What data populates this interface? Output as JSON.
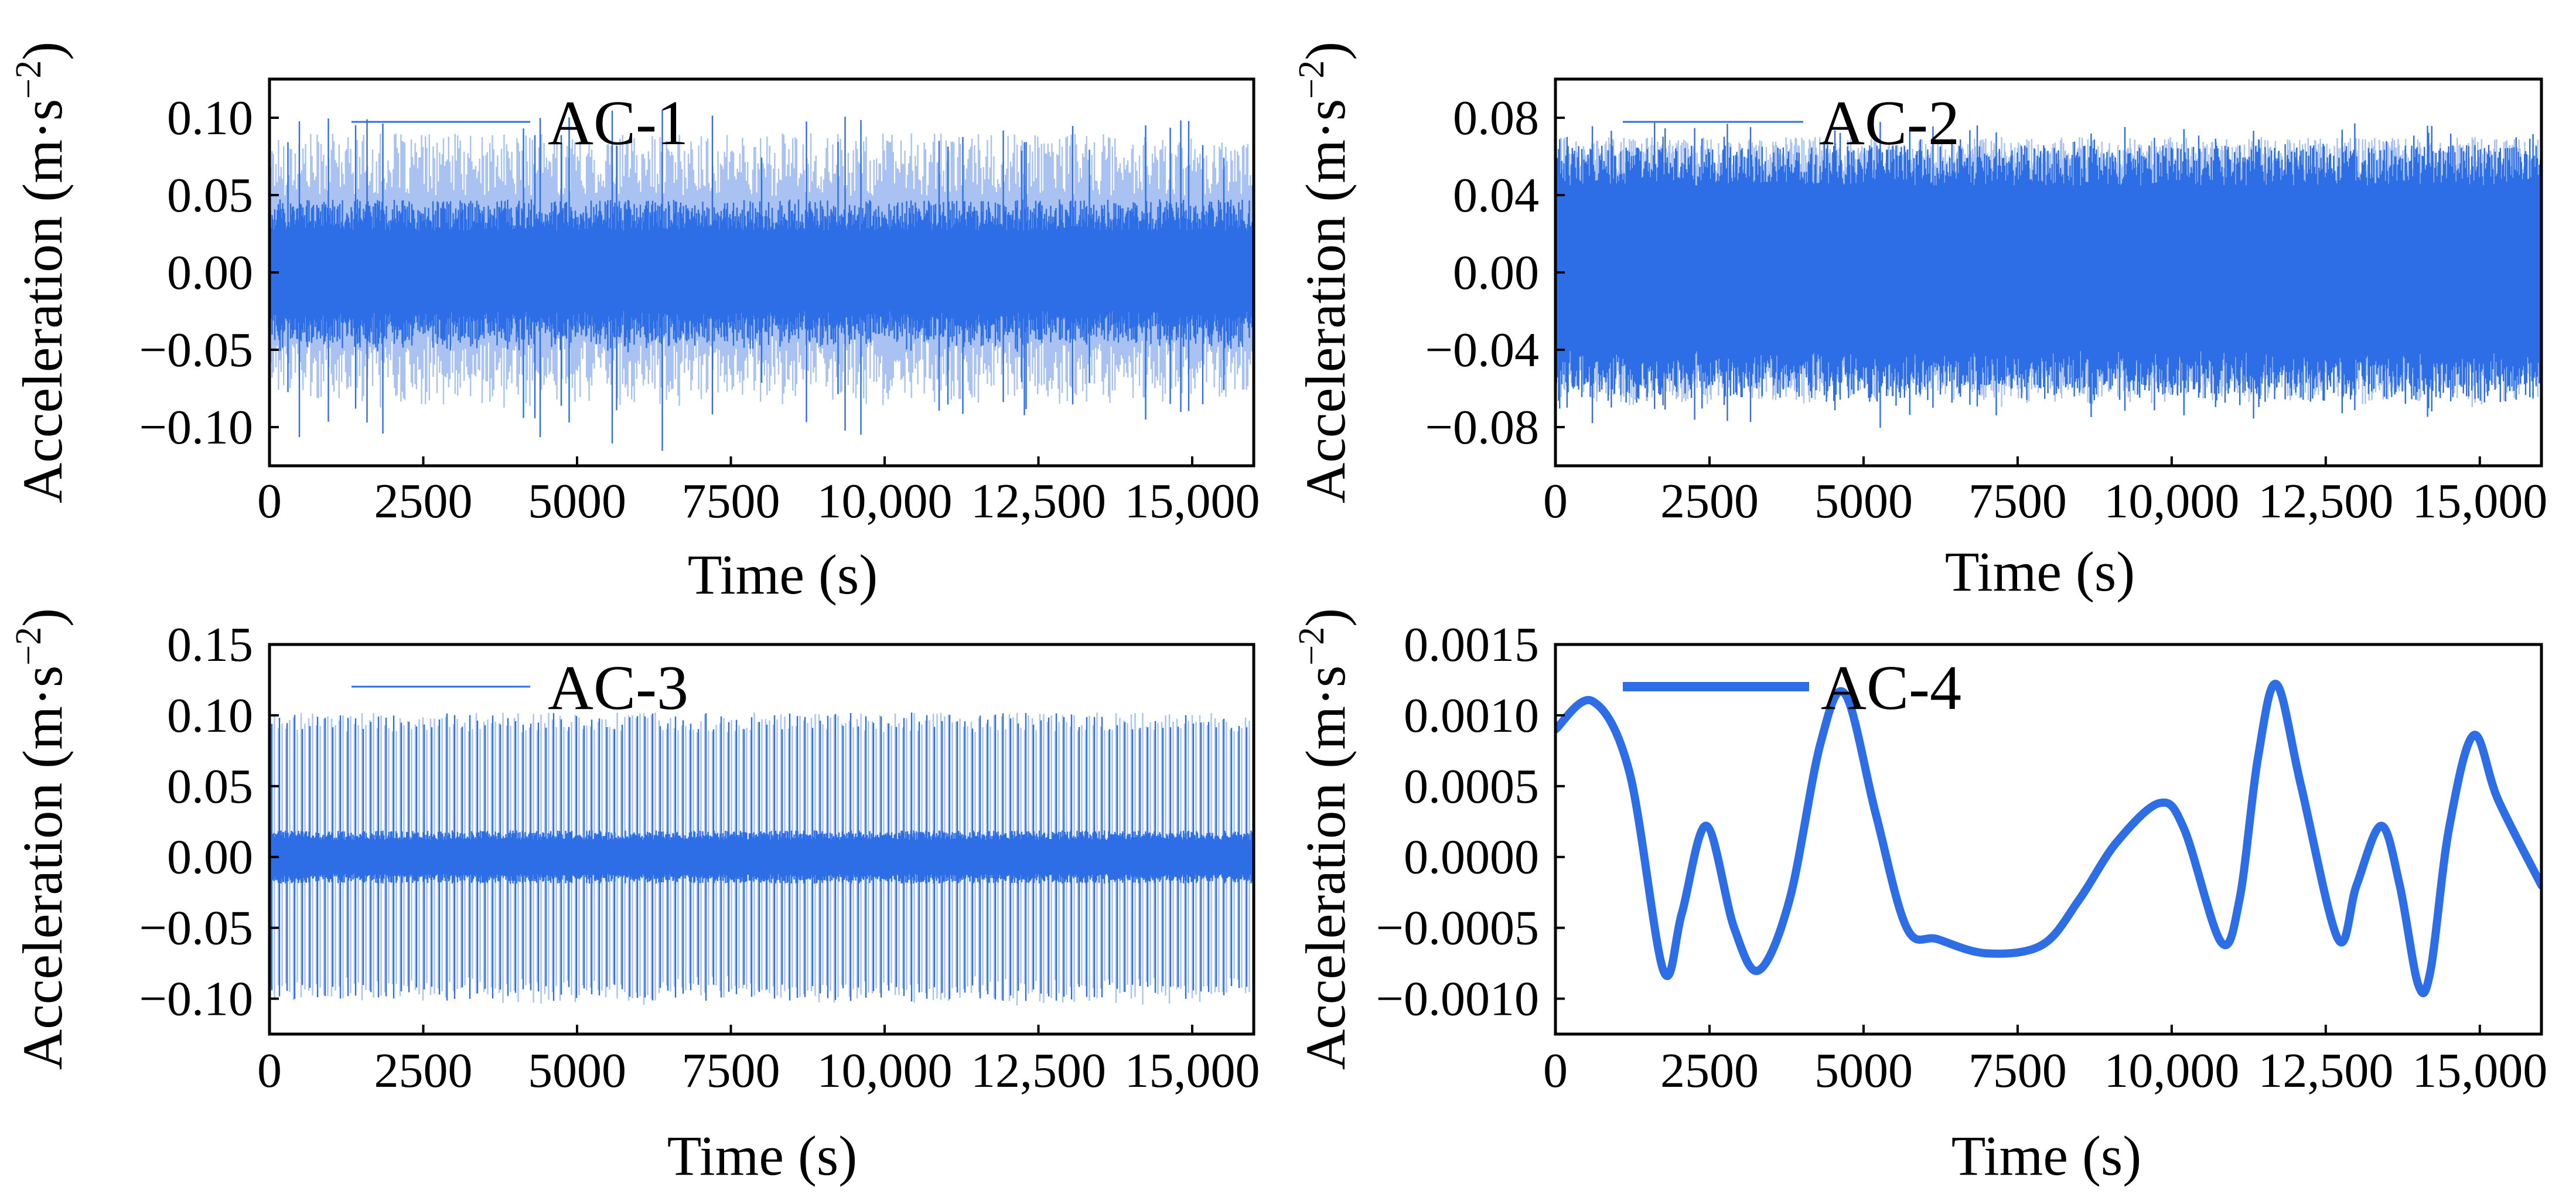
{
  "figure": {
    "panel_count": 4,
    "series_color": "#2d6ee6",
    "series_color_light": "#a9c2f2"
  },
  "chart_data": [
    {
      "id": "ac1",
      "type": "line",
      "title": "",
      "series": [
        {
          "name": "AC-1",
          "style": "noise",
          "envelope": 0.045,
          "peak": 0.105,
          "light_peak": 0.09
        }
      ],
      "xlabel": "Time (s)",
      "ylabel_main": "Acceleration (m·s",
      "ylabel_sup": "−2",
      "ylabel_tail": ")",
      "xlim": [
        0,
        16000
      ],
      "ylim": [
        -0.125,
        0.125
      ],
      "xticks": [
        0,
        2500,
        5000,
        7500,
        10000,
        12500,
        15000
      ],
      "xtick_labels": [
        "0",
        "2500",
        "5000",
        "7500",
        "10,000",
        "12,500",
        "15,000"
      ],
      "yticks": [
        0.1,
        0.05,
        0.0,
        -0.05,
        -0.1
      ],
      "ytick_labels": [
        "0.10",
        "0.05",
        "0.00",
        "−0.05",
        "−0.10"
      ],
      "legend": "AC-1",
      "legend_style": "thin"
    },
    {
      "id": "ac2",
      "type": "line",
      "title": "",
      "series": [
        {
          "name": "AC-2",
          "style": "dense",
          "envelope": 0.06,
          "peak": 0.078,
          "light_peak": 0.07
        }
      ],
      "xlabel": "Time (s)",
      "ylabel_main": "Acceleration (m·s",
      "ylabel_sup": "−2",
      "ylabel_tail": ")",
      "xlim": [
        0,
        16000
      ],
      "ylim": [
        -0.1,
        0.1
      ],
      "xticks": [
        0,
        2500,
        5000,
        7500,
        10000,
        12500,
        15000
      ],
      "xtick_labels": [
        "0",
        "2500",
        "5000",
        "7500",
        "10,000",
        "12,500",
        "15,000"
      ],
      "yticks": [
        0.08,
        0.04,
        0.0,
        -0.04,
        -0.08
      ],
      "ytick_labels": [
        "0.08",
        "0.04",
        "0.00",
        "−0.04",
        "−0.08"
      ],
      "legend": "AC-2",
      "legend_style": "thin"
    },
    {
      "id": "ac3",
      "type": "line",
      "title": "",
      "series": [
        {
          "name": "AC-3",
          "style": "spiky",
          "envelope": 0.015,
          "peak": 0.11,
          "light_peak": 0.1
        }
      ],
      "xlabel": "Time (s)",
      "ylabel_main": "Acceleration (m·s",
      "ylabel_sup": "−2",
      "ylabel_tail": ")",
      "xlim": [
        0,
        16000
      ],
      "ylim": [
        -0.125,
        0.15
      ],
      "xticks": [
        0,
        2500,
        5000,
        7500,
        10000,
        12500,
        15000
      ],
      "xtick_labels": [
        "0",
        "2500",
        "5000",
        "7500",
        "10,000",
        "12,500",
        "15,000"
      ],
      "yticks": [
        0.15,
        0.1,
        0.05,
        0.0,
        -0.05,
        -0.1
      ],
      "ytick_labels": [
        "0.15",
        "0.10",
        "0.05",
        "0.00",
        "−0.05",
        "−0.10"
      ],
      "legend": "AC-3",
      "legend_style": "thin"
    },
    {
      "id": "ac4",
      "type": "line",
      "title": "",
      "series": [
        {
          "name": "AC-4",
          "style": "smooth",
          "x": [
            0,
            600,
            1200,
            1750,
            2050,
            2450,
            2900,
            3300,
            3800,
            4300,
            4700,
            5200,
            5700,
            6200,
            7000,
            7900,
            8500,
            9100,
            9800,
            10200,
            10800,
            11100,
            11400,
            11700,
            12100,
            12700,
            13000,
            13400,
            13700,
            14000,
            14200,
            14500,
            14900,
            15300,
            16000
          ],
          "y": [
            0.0009,
            0.0011,
            0.0006,
            -0.0008,
            -0.0004,
            0.00022,
            -0.0005,
            -0.0008,
            -0.0003,
            0.0008,
            0.00115,
            0.0003,
            -0.0005,
            -0.00058,
            -0.00068,
            -0.00062,
            -0.0003,
            0.0001,
            0.00038,
            0.0002,
            -0.0006,
            -0.0003,
            0.0007,
            0.00122,
            0.0005,
            -0.00058,
            -0.0002,
            0.00022,
            -0.0002,
            -0.0009,
            -0.0008,
            0.0002,
            0.00086,
            0.0004,
            -0.0002
          ]
        }
      ],
      "xlabel": "Time (s)",
      "ylabel_main": "Acceleration (m·s",
      "ylabel_sup": "−2",
      "ylabel_tail": ")",
      "xlim": [
        0,
        16000
      ],
      "ylim": [
        -0.00125,
        0.0015
      ],
      "xticks": [
        0,
        2500,
        5000,
        7500,
        10000,
        12500,
        15000
      ],
      "xtick_labels": [
        "0",
        "2500",
        "5000",
        "7500",
        "10,000",
        "12,500",
        "15,000"
      ],
      "yticks": [
        0.0015,
        0.001,
        0.0005,
        0.0,
        -0.0005,
        -0.001
      ],
      "ytick_labels": [
        "0.0015",
        "0.0010",
        "0.0005",
        "0.0000",
        "−0.0005",
        "−0.0010"
      ],
      "legend": "AC-4",
      "legend_style": "thick"
    }
  ]
}
